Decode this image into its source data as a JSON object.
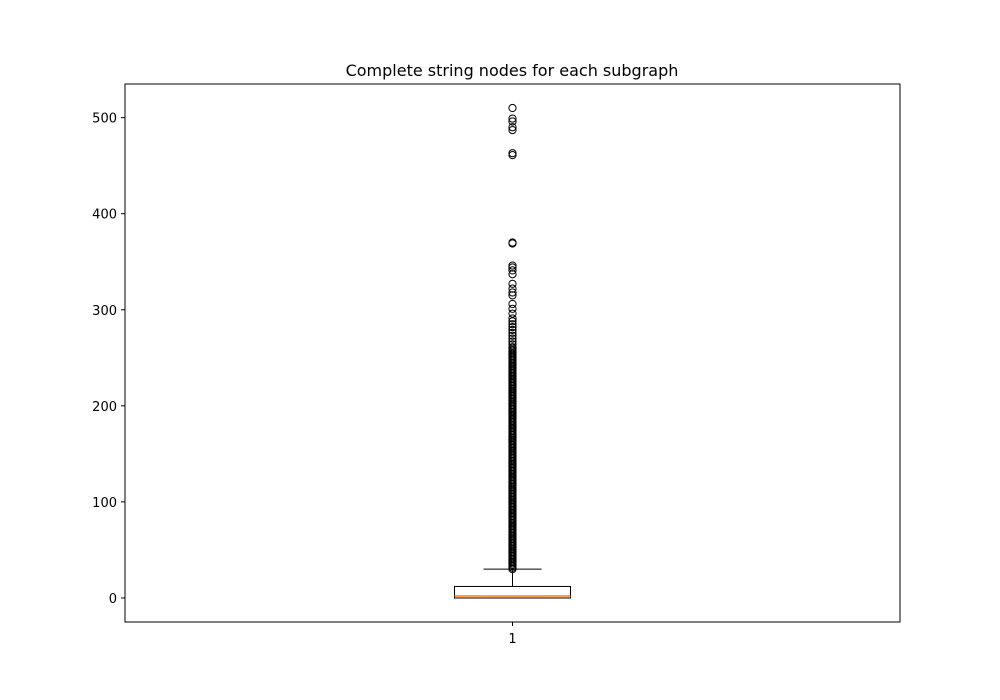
{
  "chart_data": {
    "type": "boxplot",
    "title": "Complete string nodes for each subgraph",
    "xlabel": "",
    "ylabel": "",
    "categories": [
      "1"
    ],
    "ylim": [
      -25,
      535
    ],
    "yticks": [
      0,
      100,
      200,
      300,
      400,
      500
    ],
    "grid": false,
    "box": {
      "whisker_low": 0,
      "q1": 0,
      "median": 2,
      "q3": 12,
      "whisker_high": 30
    },
    "outliers": [
      510,
      499,
      496,
      490,
      487,
      463,
      461,
      370,
      369,
      346,
      344,
      341,
      337,
      327,
      322,
      318,
      315,
      306,
      301,
      296,
      291,
      288,
      285,
      282,
      279,
      276,
      273,
      270,
      267,
      264
    ],
    "dense_outlier_range": [
      30,
      262
    ],
    "colors": {
      "box_edge": "#000000",
      "median": "#ff7f0e",
      "outlier_edge": "#000000",
      "background": "#ffffff"
    }
  }
}
